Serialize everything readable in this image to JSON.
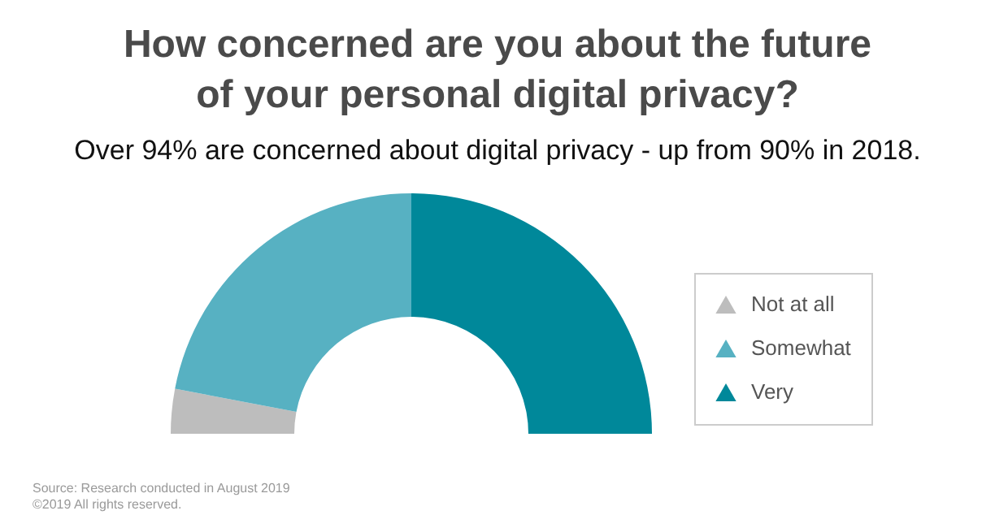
{
  "chart_data": {
    "type": "donut",
    "title": "How concerned are you about the future\nof your personal digital privacy?",
    "subtitle": "Over 94% are concerned about digital privacy - up from 90% in 2018.",
    "categories": [
      "Not at all",
      "Somewhat",
      "Very"
    ],
    "values": [
      6,
      44,
      50
    ],
    "colors": [
      "#bdbdbd",
      "#57b1c2",
      "#00889a"
    ],
    "legend": "right",
    "annotations": [
      "Source: Research conducted in August 2019",
      "©2019 All rights reserved."
    ]
  }
}
